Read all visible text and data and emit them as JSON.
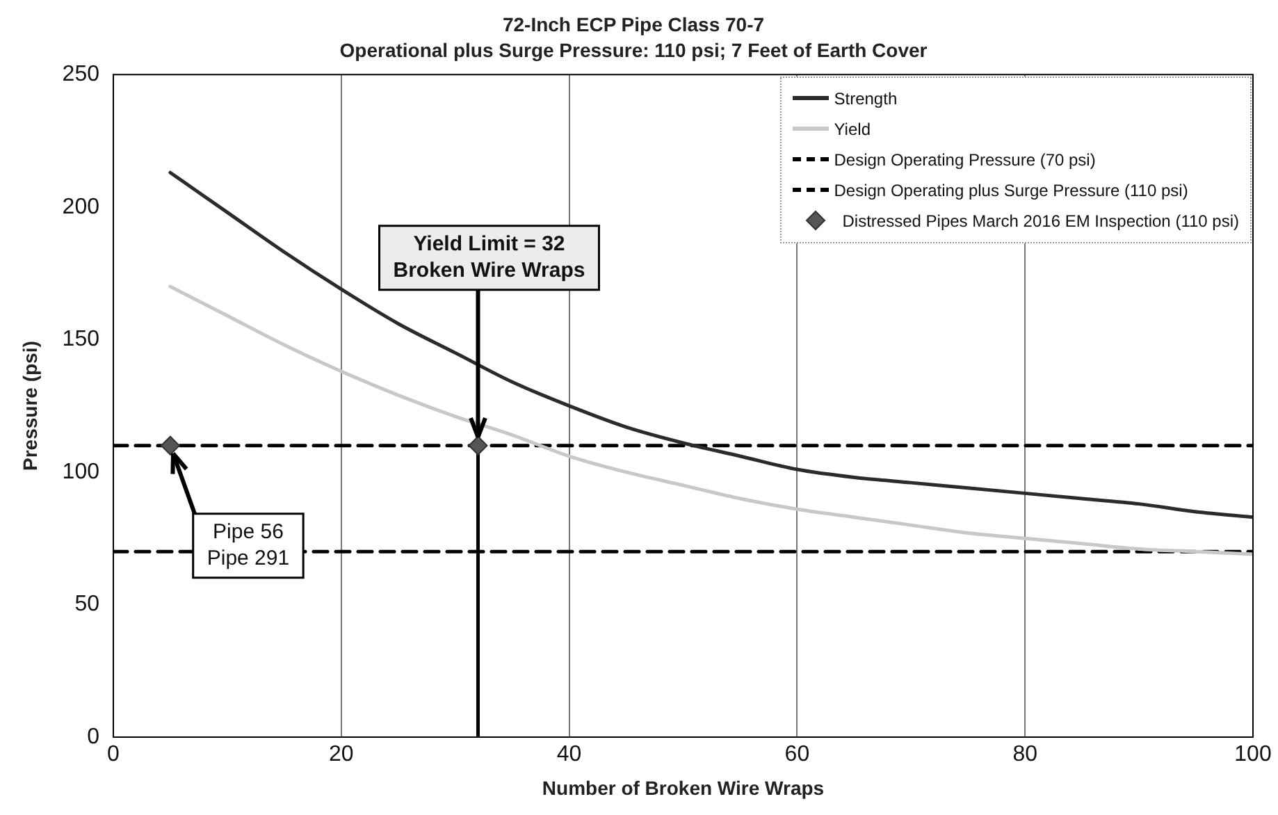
{
  "chart_data": {
    "type": "line",
    "title": "72-Inch ECP Pipe Class 70-7",
    "subtitle": "Operational plus Surge Pressure: 110 psi; 7 Feet of Earth Cover",
    "xlabel": "Number of Broken Wire Wraps",
    "ylabel": "Pressure (psi)",
    "xlim": [
      0,
      100
    ],
    "xticks": [
      0,
      20,
      40,
      60,
      80,
      100
    ],
    "ylim": [
      0,
      250
    ],
    "yticks": [
      0,
      50,
      100,
      150,
      200,
      250
    ],
    "grid": "x",
    "legend": "top right",
    "series": [
      {
        "name": "Strength",
        "type": "line",
        "color": "#2b2b2b",
        "x": [
          5,
          10,
          15,
          20,
          25,
          30,
          35,
          40,
          45,
          50,
          55,
          60,
          65,
          70,
          75,
          80,
          85,
          90,
          95,
          100
        ],
        "values": [
          213,
          198,
          183,
          169,
          156,
          145,
          134,
          125,
          117,
          111,
          106,
          101,
          98,
          96,
          94,
          92,
          90,
          88,
          85,
          83
        ]
      },
      {
        "name": "Yield",
        "type": "line",
        "color": "#c8c8c8",
        "x": [
          5,
          10,
          15,
          20,
          25,
          30,
          35,
          40,
          45,
          50,
          55,
          60,
          65,
          70,
          75,
          80,
          85,
          90,
          95,
          100
        ],
        "values": [
          170,
          159,
          148,
          138,
          129,
          121,
          114,
          106,
          100,
          95,
          90,
          86,
          83,
          80,
          77,
          75,
          73,
          71,
          70,
          69
        ]
      },
      {
        "name": "Design Operating Pressure (70 psi)",
        "type": "line",
        "color": "#000000",
        "line_style": "dashed",
        "x": [
          0,
          100
        ],
        "values": [
          70,
          70
        ]
      },
      {
        "name": "Design Operating plus Surge Pressure (110 psi)",
        "type": "line",
        "color": "#000000",
        "line_style": "dashed",
        "x": [
          0,
          100
        ],
        "values": [
          110,
          110
        ]
      },
      {
        "name": "Distressed Pipes March 2016 EM Inspection (110 psi)",
        "type": "scatter",
        "color": "#555555",
        "marker": "diamond",
        "x": [
          5,
          32
        ],
        "values": [
          110,
          110
        ]
      },
      {
        "type": "line",
        "color": "#000000",
        "x": [
          32,
          32
        ],
        "values": [
          0,
          110
        ]
      }
    ],
    "annotations": [
      {
        "text": "Yield Limit = 32\nBroken Wire Wraps",
        "x": 32,
        "y": 110
      },
      {
        "text": "Pipe 56\nPipe 291",
        "x": 5,
        "y": 110
      }
    ]
  }
}
